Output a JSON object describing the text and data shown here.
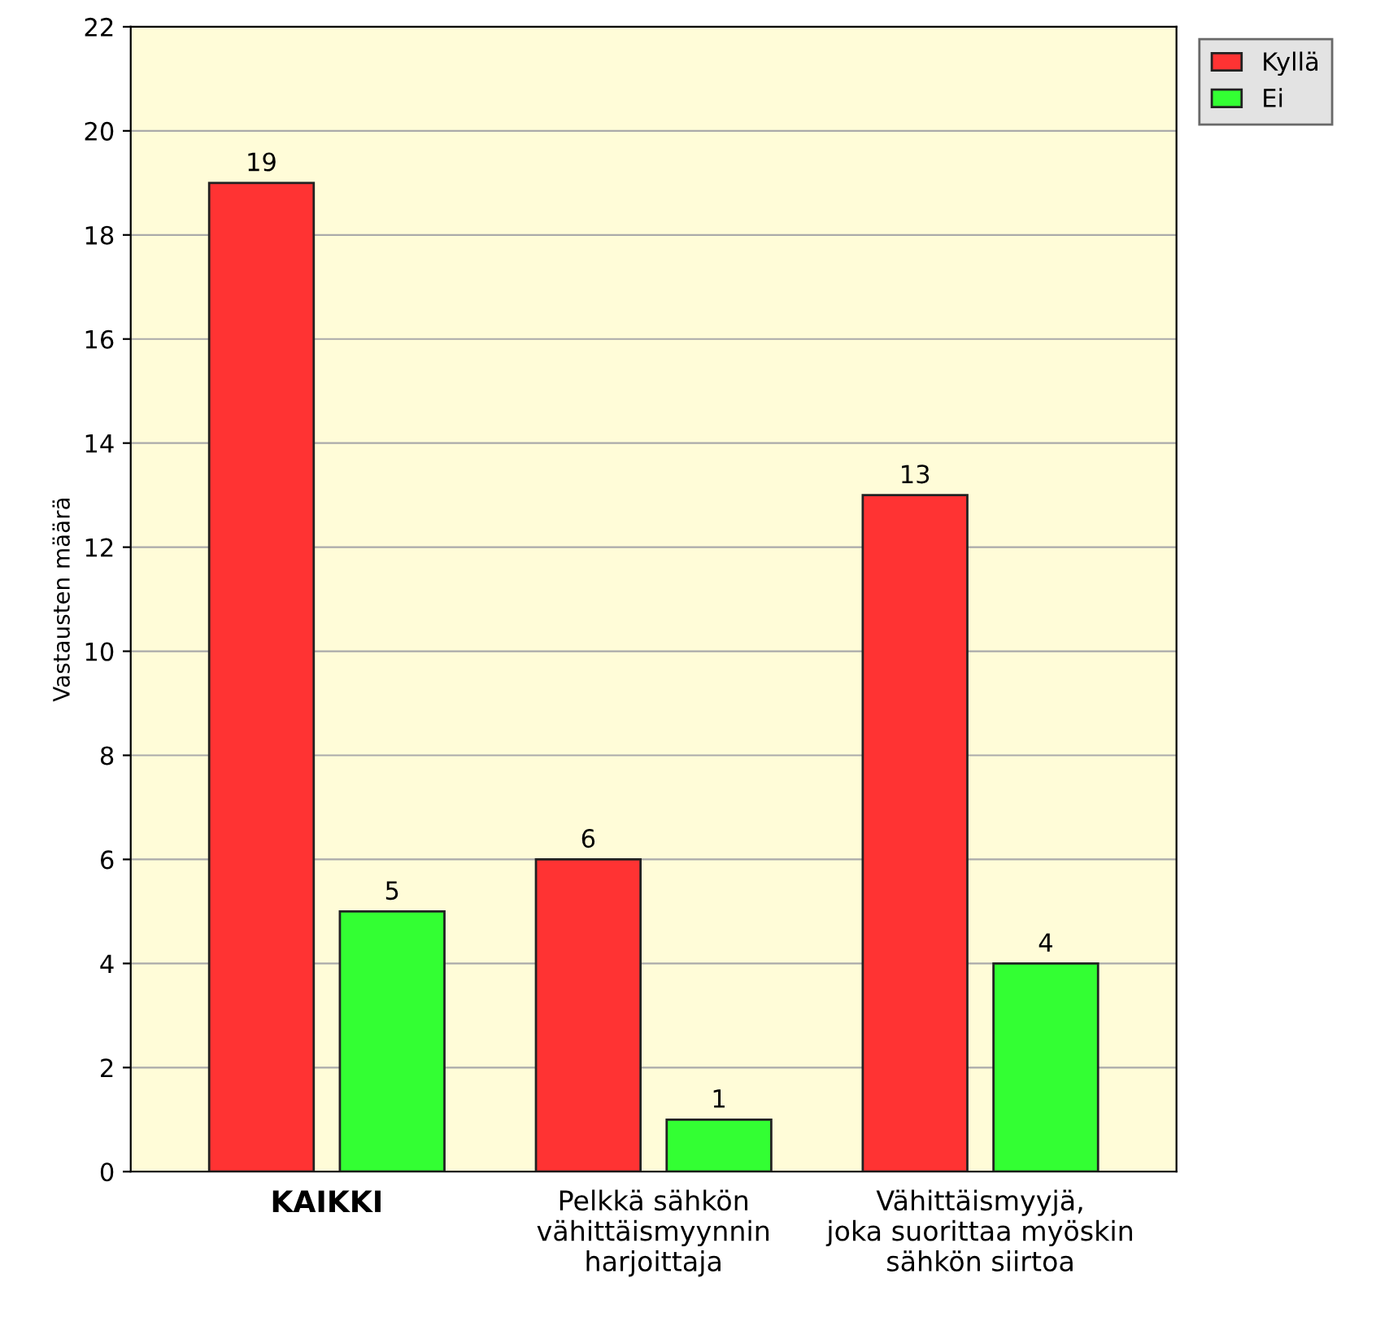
{
  "chart_data": {
    "type": "bar",
    "ylabel": "Vastausten määrä",
    "categories": [
      "KAIKKI",
      "Pelkkä sähkön\nvähittäismyynnin\nharjoittaja",
      "Vähittäismyyjä,\njoka suorittaa myöskin\nsähkön siirtoa"
    ],
    "series": [
      {
        "name": "Kyllä",
        "color": "#ff3333",
        "values": [
          19,
          6,
          13
        ]
      },
      {
        "name": "Ei",
        "color": "#33ff33",
        "values": [
          5,
          1,
          4
        ]
      }
    ],
    "ylim": [
      0,
      22
    ],
    "yticks": [
      0,
      2,
      4,
      6,
      8,
      10,
      12,
      14,
      16,
      18,
      20,
      22
    ],
    "grid": "y",
    "legend": "top right",
    "data_labels": true
  }
}
